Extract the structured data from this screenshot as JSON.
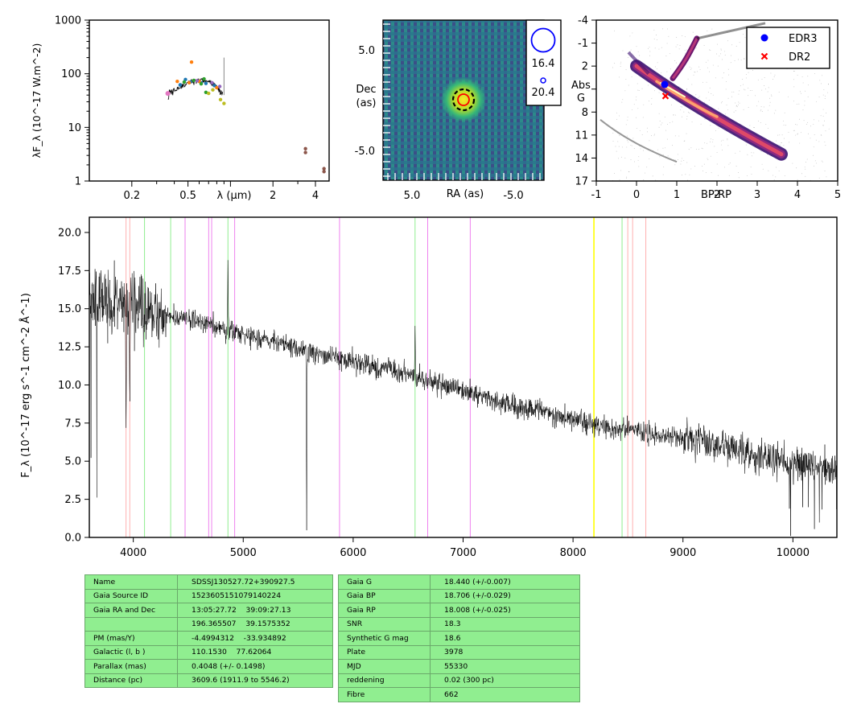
{
  "sed_panel": {
    "ylabel": "λF_λ (10^-17 W.m^-2)",
    "xlabel": "λ (μm)",
    "y_ticks": [
      "1",
      "10",
      "100",
      "1000"
    ],
    "x_ticks": [
      "0.2",
      "0.5",
      "2",
      "4"
    ]
  },
  "image_panel": {
    "xlabel": "RA (as)",
    "ylabel_1": "Dec",
    "ylabel_2": "(as)",
    "x_ticks": [
      "5.0",
      "-5.0"
    ],
    "y_ticks": [
      "5.0",
      "-5.0"
    ],
    "mag_bright": "16.4",
    "mag_faint": "20.4"
  },
  "cmd_panel": {
    "xlabel": "BP-RP",
    "ylabel_1": "Abs",
    "ylabel_2": "G",
    "x_ticks": [
      "-1",
      "0",
      "1",
      "2",
      "3",
      "4",
      "5"
    ],
    "y_ticks": [
      "-4",
      "-1",
      "2",
      "5",
      "8",
      "11",
      "14",
      "17"
    ],
    "legend": [
      "EDR3",
      "DR2"
    ]
  },
  "spectrum_panel": {
    "ylabel": "F_λ (10^-17 erg s^-1 cm^-2 Å^-1)",
    "x_ticks": [
      "4000",
      "5000",
      "6000",
      "7000",
      "8000",
      "9000",
      "10000"
    ],
    "y_ticks": [
      "0.0",
      "2.5",
      "5.0",
      "7.5",
      "10.0",
      "12.5",
      "15.0",
      "17.5",
      "20.0"
    ]
  },
  "table_left": [
    {
      "key": "Name",
      "value": "SDSSJ130527.72+390927.5"
    },
    {
      "key": "Gaia Source ID",
      "value": "1523605151079140224"
    },
    {
      "key": "Gaia RA and Dec",
      "value": "13:05:27.72    39:09:27.13"
    },
    {
      "key": "",
      "value": "196.365507    39.1575352"
    },
    {
      "key": "PM (mas/Y)",
      "value": "-4.4994312    -33.934892"
    },
    {
      "key": "Galactic (l, b )",
      "value": "110.1530    77.62064"
    },
    {
      "key": "Parallax (mas)",
      "value": "0.4048 (+/- 0.1498)"
    },
    {
      "key": "Distance (pc)",
      "value": "3609.6 (1911.9 to 5546.2)"
    }
  ],
  "table_right": [
    {
      "key": "Gaia G",
      "value": "18.440 (+/-0.007)"
    },
    {
      "key": "Gaia BP",
      "value": "18.706 (+/-0.029)"
    },
    {
      "key": "Gaia RP",
      "value": "18.008 (+/-0.025)"
    },
    {
      "key": "SNR",
      "value": "18.3"
    },
    {
      "key": "Synthetic G mag",
      "value": "18.6"
    },
    {
      "key": "Plate",
      "value": "3978"
    },
    {
      "key": "MJD",
      "value": "55330"
    },
    {
      "key": "reddening",
      "value": "0.02 (300 pc)"
    },
    {
      "key": "Fibre",
      "value": "662"
    }
  ],
  "colors": {
    "table_bg": "#90ee90",
    "edr3": "#0000ff",
    "dr2": "#ff0000",
    "line_red": "#ffb0b0",
    "line_green": "#90ee90",
    "line_violet": "#ee82ee",
    "line_yellow": "#ffff00"
  },
  "chart_data": [
    {
      "type": "scatter",
      "panel": "SED",
      "xlabel": "λ (μm)",
      "ylabel": "λF_λ (10^-17 W.m^-2)",
      "log_x": true,
      "log_y": true,
      "xlim": [
        0.1,
        5
      ],
      "ylim": [
        1,
        1000
      ],
      "series": [
        {
          "color": "#e377c2",
          "x": [
            0.36
          ],
          "y": [
            43
          ]
        },
        {
          "color": "#1f77b4",
          "x": [
            0.44,
            0.48,
            0.52,
            0.62,
            0.67,
            0.77
          ],
          "y": [
            62,
            78,
            70,
            68,
            66,
            60
          ]
        },
        {
          "color": "#ff7f0e",
          "x": [
            0.42,
            0.51,
            0.53,
            0.6,
            0.8
          ],
          "y": [
            72,
            68,
            165,
            72,
            55
          ]
        },
        {
          "color": "#2ca02c",
          "x": [
            0.47,
            0.55,
            0.62,
            0.65,
            0.67
          ],
          "y": [
            70,
            75,
            65,
            80,
            45
          ]
        },
        {
          "color": "#bcbd22",
          "x": [
            0.7,
            0.75,
            0.85,
            0.9
          ],
          "y": [
            43,
            50,
            33,
            28
          ]
        },
        {
          "color": "#9467bd",
          "x": [
            0.58,
            0.74,
            0.84
          ],
          "y": [
            74,
            68,
            58
          ]
        },
        {
          "color": "#8c564b",
          "x": [
            3.4,
            3.4,
            4.6,
            4.6
          ],
          "y": [
            4.0,
            3.4,
            1.7,
            1.5
          ]
        }
      ]
    },
    {
      "type": "scatter",
      "panel": "CMD",
      "xlabel": "BP-RP",
      "ylabel": "Abs G",
      "xlim": [
        -1,
        5
      ],
      "ylim": [
        17,
        -4
      ],
      "legend_position": "top-right",
      "series": [
        {
          "name": "EDR3",
          "color": "#0000ff",
          "x": [
            0.7
          ],
          "y": [
            4.4
          ]
        },
        {
          "name": "DR2",
          "color": "#ff0000",
          "x": [
            0.72
          ],
          "y": [
            5.9
          ]
        }
      ]
    },
    {
      "type": "line",
      "panel": "spectrum",
      "xlabel": "",
      "ylabel": "F_λ (10^-17 erg s^-1 cm^-2 Å^-1)",
      "xlim": [
        3600,
        10400
      ],
      "ylim": [
        0,
        21
      ],
      "continuum_x": [
        3600,
        4000,
        4500,
        5000,
        5500,
        6000,
        6500,
        7000,
        7500,
        8000,
        8500,
        9000,
        9500,
        10000,
        10400
      ],
      "continuum_y": [
        15.5,
        15.2,
        14.3,
        13.3,
        12.4,
        11.5,
        10.7,
        9.6,
        8.6,
        7.7,
        7.0,
        6.5,
        5.7,
        4.9,
        4.4
      ],
      "features": [
        {
          "x": 3934,
          "y": 6.0
        },
        {
          "x": 3968,
          "y": 8.0
        },
        {
          "x": 4861,
          "y": 18.5
        },
        {
          "x": 5577,
          "y": 0.0
        },
        {
          "x": 6563,
          "y": 14.0
        }
      ],
      "reference_lines": {
        "red": [
          3934,
          3968,
          8498,
          8542,
          8662
        ],
        "green": [
          4102,
          4340,
          4861,
          6563,
          8446
        ],
        "violet": [
          4471,
          4686,
          4713,
          4922,
          5876,
          6678,
          7065
        ],
        "yellow": [
          8190
        ]
      }
    }
  ]
}
